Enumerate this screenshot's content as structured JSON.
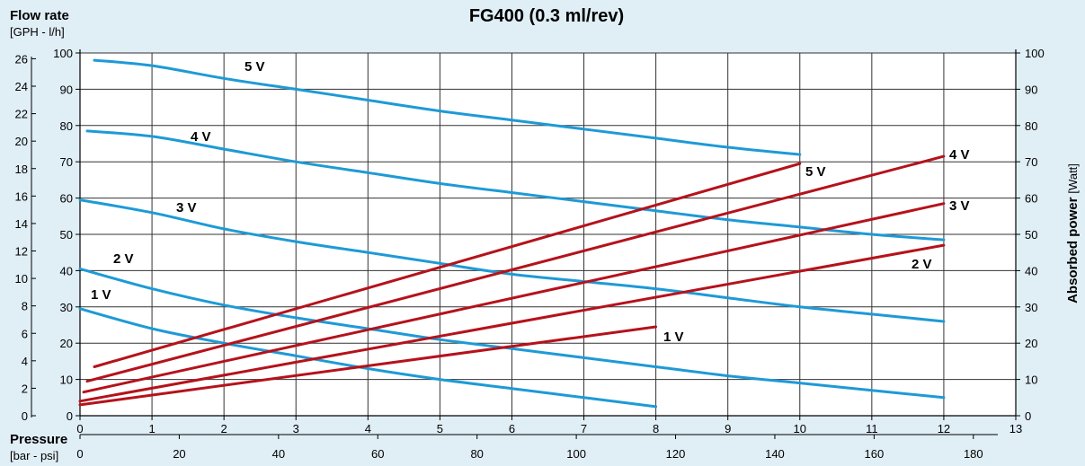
{
  "chart_data": {
    "type": "line",
    "title": "FG400 (0.3 ml/rev)",
    "left_axis": {
      "title": "Flow rate",
      "subtitle": "[GPH - l/h]",
      "outer_ticks_gph": [
        0,
        2,
        4,
        6,
        8,
        10,
        12,
        14,
        16,
        18,
        20,
        22,
        24,
        26
      ],
      "inner_ticks_lh": [
        0,
        10,
        20,
        30,
        40,
        50,
        60,
        70,
        80,
        90,
        100
      ],
      "ylim": [
        0,
        100
      ]
    },
    "right_axis": {
      "title": "Absorbed power",
      "unit": "[Watt]",
      "ticks": [
        0,
        10,
        20,
        30,
        40,
        50,
        60,
        70,
        80,
        90,
        100
      ],
      "ylim": [
        0,
        100
      ]
    },
    "x_axis": {
      "title": "Pressure",
      "subtitle": "[bar - psi]",
      "bar_ticks": [
        0,
        1,
        2,
        3,
        4,
        5,
        6,
        7,
        8,
        9,
        10,
        11,
        12,
        13
      ],
      "psi_ticks": [
        0,
        20,
        40,
        60,
        80,
        100,
        120,
        140,
        160,
        180
      ],
      "xlim": [
        0,
        13
      ]
    },
    "grid": true,
    "colors": {
      "flow": "#1e9ad6",
      "power": "#b5121b",
      "background": "#e0eef6"
    },
    "flow_series": [
      {
        "name": "5 V",
        "x": [
          0.2,
          1,
          2,
          3,
          4,
          5,
          6,
          7,
          8,
          9,
          10
        ],
        "y": [
          98,
          96.5,
          93,
          90,
          87,
          84,
          81.5,
          79,
          76.5,
          74,
          72
        ]
      },
      {
        "name": "4 V",
        "x": [
          0.1,
          1,
          2,
          3,
          4,
          5,
          6,
          7,
          8,
          9,
          10,
          11,
          12
        ],
        "y": [
          78.5,
          77,
          73.5,
          70,
          67,
          64,
          61.5,
          59,
          56.5,
          54,
          52,
          50,
          48.5
        ]
      },
      {
        "name": "3 V",
        "x": [
          0,
          1,
          2,
          3,
          4,
          5,
          6,
          7,
          8,
          9,
          10,
          11,
          12
        ],
        "y": [
          59.5,
          56,
          51.5,
          48,
          45,
          42,
          39,
          37,
          35,
          32.5,
          30,
          28,
          26
        ]
      },
      {
        "name": "2 V",
        "x": [
          0,
          1,
          2,
          3,
          4,
          5,
          6,
          7,
          8,
          9,
          10,
          11,
          12
        ],
        "y": [
          40.5,
          35,
          30.5,
          27,
          24,
          21,
          18.5,
          16,
          13.5,
          11,
          9,
          7,
          5
        ]
      },
      {
        "name": "1 V",
        "x": [
          0,
          1,
          2,
          3,
          4,
          5,
          6,
          7,
          8
        ],
        "y": [
          29.5,
          24,
          20,
          16.5,
          13,
          10,
          7.5,
          5,
          2.5
        ]
      }
    ],
    "power_series": [
      {
        "name": "5 V",
        "x": [
          0.2,
          10
        ],
        "y": [
          13.5,
          69.5
        ]
      },
      {
        "name": "4 V",
        "x": [
          0.1,
          12
        ],
        "y": [
          9.5,
          71.5
        ]
      },
      {
        "name": "3 V",
        "x": [
          0.05,
          12
        ],
        "y": [
          6.5,
          58.5
        ]
      },
      {
        "name": "2 V",
        "x": [
          0,
          12
        ],
        "y": [
          4,
          47
        ]
      },
      {
        "name": "1 V",
        "x": [
          0,
          8
        ],
        "y": [
          3,
          24.5
        ]
      }
    ],
    "annotations": [
      "5 V",
      "4 V",
      "3 V",
      "2 V",
      "1 V"
    ]
  }
}
